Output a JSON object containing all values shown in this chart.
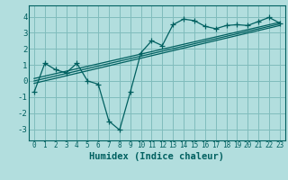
{
  "xlabel": "Humidex (Indice chaleur)",
  "bg_color": "#b2dede",
  "grid_color": "#80bcbc",
  "line_color": "#006060",
  "xlim": [
    -0.5,
    23.5
  ],
  "ylim": [
    -3.7,
    4.7
  ],
  "xticks": [
    0,
    1,
    2,
    3,
    4,
    5,
    6,
    7,
    8,
    9,
    10,
    11,
    12,
    13,
    14,
    15,
    16,
    17,
    18,
    19,
    20,
    21,
    22,
    23
  ],
  "yticks": [
    -3,
    -2,
    -1,
    0,
    1,
    2,
    3,
    4
  ],
  "series": [
    {
      "x": [
        0,
        1,
        2,
        3,
        4,
        5,
        6,
        7,
        8,
        9,
        10,
        11,
        12,
        13,
        14,
        15,
        16,
        17,
        18,
        19,
        20,
        21,
        22,
        23
      ],
      "y": [
        -0.7,
        1.1,
        0.7,
        0.5,
        1.1,
        0.0,
        -0.2,
        -2.5,
        -3.05,
        -0.7,
        1.75,
        2.5,
        2.2,
        3.5,
        3.85,
        3.75,
        3.4,
        3.25,
        3.45,
        3.5,
        3.45,
        3.7,
        3.95,
        3.6
      ]
    },
    {
      "x": [
        0,
        23
      ],
      "y": [
        0.15,
        3.65
      ]
    },
    {
      "x": [
        0,
        23
      ],
      "y": [
        0.0,
        3.55
      ]
    },
    {
      "x": [
        0,
        23
      ],
      "y": [
        -0.15,
        3.45
      ]
    }
  ]
}
